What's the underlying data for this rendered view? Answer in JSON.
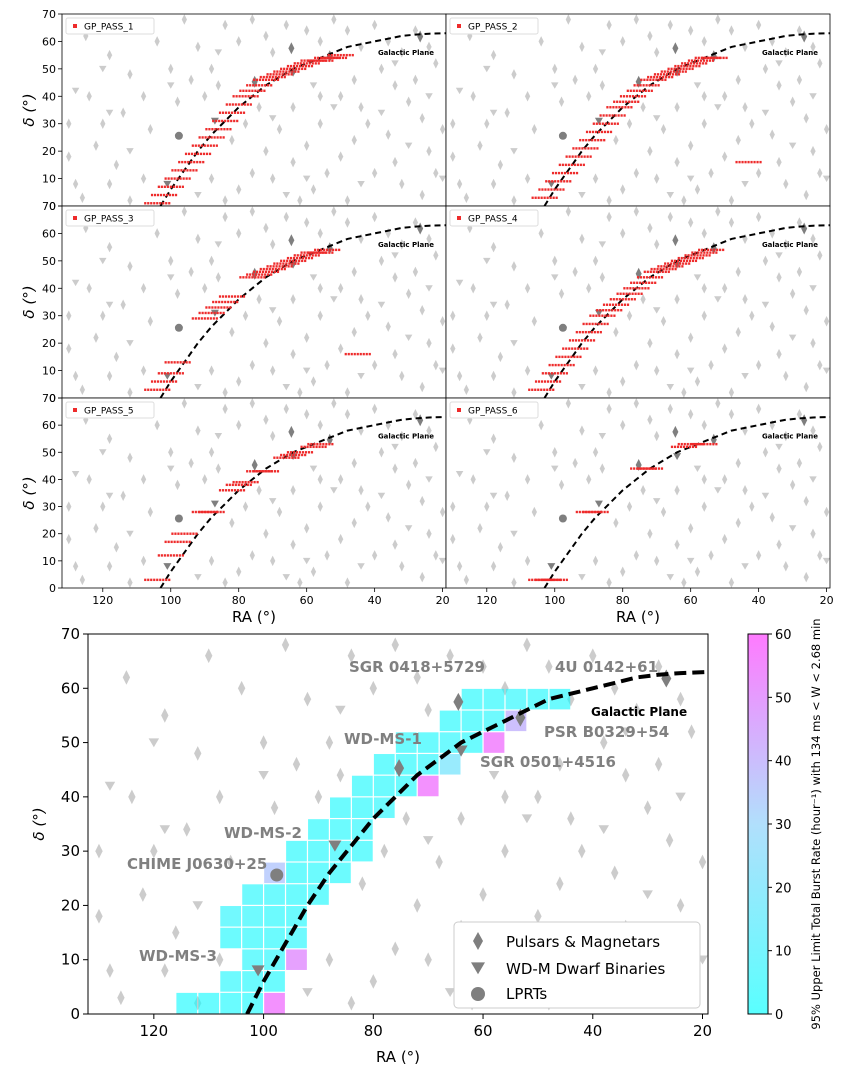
{
  "colors": {
    "survey_points": "#ee2b2b",
    "background_marker": "#cccccc",
    "source_marker": "#7f7f7f",
    "galactic_plane": "#000000",
    "colorbar_low": "#00ffff",
    "colorbar_mid": "#87ceeb",
    "colorbar_high": "#ff33ff",
    "label_gray": "#808080"
  },
  "chart_data": [
    {
      "type": "scatter",
      "panel": "top-left-1",
      "title": "",
      "legend": [
        "GP_PASS_1"
      ],
      "legend_position": "top-left",
      "xlabel": "",
      "ylabel": "δ (°)",
      "xlim": [
        132,
        19
      ],
      "ylim": [
        0,
        70
      ],
      "annotation": "Galactic Plane",
      "series": [
        {
          "name": "GP_PASS_1",
          "x": [
            104,
            102,
            100,
            98,
            96,
            94,
            92,
            90,
            88,
            86,
            84,
            82,
            80,
            78,
            76,
            74,
            72,
            70,
            68,
            66,
            64,
            62,
            60,
            58,
            56,
            54,
            52,
            50
          ],
          "y": [
            1,
            4,
            7,
            10,
            13,
            16,
            19,
            22,
            25,
            28,
            31,
            34,
            37,
            40,
            42,
            44,
            46,
            47,
            48,
            49,
            50,
            51,
            52,
            53,
            53,
            54,
            54,
            55
          ]
        }
      ]
    },
    {
      "type": "scatter",
      "panel": "top-right-2",
      "legend": [
        "GP_PASS_2"
      ],
      "legend_position": "top-left",
      "xlabel": "",
      "ylabel": "",
      "xlim": [
        132,
        19
      ],
      "ylim": [
        0,
        70
      ],
      "annotation": "Galactic Plane",
      "series": [
        {
          "name": "GP_PASS_2",
          "x": [
            103,
            101,
            99,
            97,
            95,
            93,
            91,
            89,
            87,
            85,
            83,
            81,
            79,
            77,
            75,
            73,
            71,
            69,
            67,
            65,
            63,
            61,
            59,
            57,
            55,
            53,
            43
          ],
          "y": [
            3,
            6,
            9,
            12,
            15,
            18,
            21,
            24,
            27,
            30,
            33,
            36,
            38,
            40,
            42,
            44,
            46,
            47,
            48,
            49,
            50,
            51,
            52,
            53,
            54,
            54,
            16
          ]
        }
      ]
    },
    {
      "type": "scatter",
      "panel": "middle-left-3",
      "legend": [
        "GP_PASS_3"
      ],
      "legend_position": "top-left",
      "xlabel": "",
      "ylabel": "δ (°)",
      "xlim": [
        132,
        19
      ],
      "ylim": [
        0,
        70
      ],
      "annotation": "Galactic Plane",
      "series": [
        {
          "name": "GP_PASS_3",
          "x": [
            104,
            102,
            100,
            98,
            90,
            88,
            86,
            84,
            82,
            76,
            74,
            72,
            70,
            68,
            66,
            64,
            62,
            60,
            58,
            56,
            54,
            45
          ],
          "y": [
            3,
            6,
            9,
            13,
            29,
            31,
            33,
            35,
            37,
            44,
            45,
            46,
            47,
            48,
            49,
            50,
            51,
            52,
            53,
            53,
            54,
            16
          ]
        }
      ]
    },
    {
      "type": "scatter",
      "panel": "middle-right-4",
      "legend": [
        "GP_PASS_4"
      ],
      "legend_position": "top-left",
      "xlabel": "",
      "ylabel": "",
      "xlim": [
        132,
        19
      ],
      "ylim": [
        0,
        70
      ],
      "annotation": "Galactic Plane",
      "series": [
        {
          "name": "GP_PASS_4",
          "x": [
            104,
            102,
            100,
            98,
            96,
            94,
            92,
            90,
            88,
            86,
            84,
            82,
            80,
            78,
            76,
            74,
            72,
            70,
            68,
            66,
            64,
            62,
            60,
            58,
            56,
            54
          ],
          "y": [
            3,
            6,
            9,
            12,
            15,
            18,
            21,
            24,
            27,
            30,
            32,
            34,
            36,
            38,
            40,
            42,
            44,
            46,
            47,
            48,
            49,
            50,
            51,
            52,
            53,
            54
          ]
        }
      ]
    },
    {
      "type": "scatter",
      "panel": "bottom-left-5",
      "legend": [
        "GP_PASS_5"
      ],
      "legend_position": "top-left",
      "xlabel": "RA (°)",
      "ylabel": "δ (°)",
      "xlim": [
        132,
        19
      ],
      "ylim": [
        0,
        70
      ],
      "annotation": "Galactic Plane",
      "series": [
        {
          "name": "GP_PASS_5",
          "x": [
            104,
            100,
            98,
            96,
            90,
            88,
            82,
            80,
            78,
            74,
            72,
            66,
            64,
            62,
            58,
            56
          ],
          "y": [
            3,
            12,
            17,
            20,
            28,
            28,
            36,
            38,
            39,
            43,
            43,
            48,
            49,
            50,
            52,
            53
          ]
        }
      ]
    },
    {
      "type": "scatter",
      "panel": "bottom-right-6",
      "legend": [
        "GP_PASS_6"
      ],
      "legend_position": "top-left",
      "xlabel": "RA (°)",
      "ylabel": "",
      "xlim": [
        132,
        19
      ],
      "ylim": [
        0,
        70
      ],
      "annotation": "Galactic Plane",
      "series": [
        {
          "name": "GP_PASS_6",
          "x": [
            104,
            102,
            100,
            90,
            88,
            74,
            72,
            62,
            60,
            56
          ],
          "y": [
            3,
            3,
            3,
            28,
            28,
            44,
            44,
            52,
            53,
            53
          ]
        }
      ]
    },
    {
      "type": "heatmap",
      "panel": "main",
      "title": "",
      "xlabel": "RA (°)",
      "ylabel": "δ (°)",
      "xlim": [
        132,
        19
      ],
      "ylim": [
        0,
        70
      ],
      "xticks": [
        120,
        100,
        80,
        60,
        40,
        20
      ],
      "yticks": [
        0,
        10,
        20,
        30,
        40,
        50,
        60,
        70
      ],
      "colorbar": {
        "label": "95% Upper Limit Total Burst Rate (hour⁻¹) with 134 ms < W < 2.68 min",
        "range": [
          0,
          60
        ],
        "ticks": [
          0,
          10,
          20,
          30,
          40,
          50,
          60
        ]
      },
      "annotation": "Galactic Plane",
      "cell_size_deg": 4,
      "cells": [
        {
          "ra": 114,
          "dec": 0,
          "v": 3
        },
        {
          "ra": 110,
          "dec": 0,
          "v": 3
        },
        {
          "ra": 106,
          "dec": 0,
          "v": 3
        },
        {
          "ra": 102,
          "dec": 0,
          "v": 3
        },
        {
          "ra": 98,
          "dec": 0,
          "v": 55
        },
        {
          "ra": 106,
          "dec": 4,
          "v": 5
        },
        {
          "ra": 102,
          "dec": 4,
          "v": 4
        },
        {
          "ra": 98,
          "dec": 4,
          "v": 4
        },
        {
          "ra": 102,
          "dec": 8,
          "v": 5
        },
        {
          "ra": 98,
          "dec": 8,
          "v": 5
        },
        {
          "ra": 94,
          "dec": 8,
          "v": 50
        },
        {
          "ra": 106,
          "dec": 12,
          "v": 4
        },
        {
          "ra": 102,
          "dec": 12,
          "v": 4
        },
        {
          "ra": 98,
          "dec": 12,
          "v": 4
        },
        {
          "ra": 94,
          "dec": 12,
          "v": 5
        },
        {
          "ra": 106,
          "dec": 16,
          "v": 6
        },
        {
          "ra": 102,
          "dec": 16,
          "v": 5
        },
        {
          "ra": 98,
          "dec": 16,
          "v": 4
        },
        {
          "ra": 94,
          "dec": 16,
          "v": 4
        },
        {
          "ra": 102,
          "dec": 20,
          "v": 5
        },
        {
          "ra": 98,
          "dec": 20,
          "v": 5
        },
        {
          "ra": 94,
          "dec": 20,
          "v": 4
        },
        {
          "ra": 90,
          "dec": 20,
          "v": 4
        },
        {
          "ra": 98,
          "dec": 24,
          "v": 35
        },
        {
          "ra": 94,
          "dec": 24,
          "v": 4
        },
        {
          "ra": 90,
          "dec": 24,
          "v": 4
        },
        {
          "ra": 86,
          "dec": 24,
          "v": 4
        },
        {
          "ra": 94,
          "dec": 28,
          "v": 4
        },
        {
          "ra": 90,
          "dec": 28,
          "v": 4
        },
        {
          "ra": 86,
          "dec": 28,
          "v": 5
        },
        {
          "ra": 82,
          "dec": 28,
          "v": 4
        },
        {
          "ra": 90,
          "dec": 32,
          "v": 4
        },
        {
          "ra": 86,
          "dec": 32,
          "v": 4
        },
        {
          "ra": 82,
          "dec": 32,
          "v": 5
        },
        {
          "ra": 86,
          "dec": 36,
          "v": 4
        },
        {
          "ra": 82,
          "dec": 36,
          "v": 4
        },
        {
          "ra": 78,
          "dec": 36,
          "v": 5
        },
        {
          "ra": 82,
          "dec": 40,
          "v": 4
        },
        {
          "ra": 78,
          "dec": 40,
          "v": 4
        },
        {
          "ra": 74,
          "dec": 40,
          "v": 4
        },
        {
          "ra": 70,
          "dec": 40,
          "v": 55
        },
        {
          "ra": 78,
          "dec": 44,
          "v": 4
        },
        {
          "ra": 74,
          "dec": 44,
          "v": 4
        },
        {
          "ra": 70,
          "dec": 44,
          "v": 5
        },
        {
          "ra": 66,
          "dec": 44,
          "v": 20
        },
        {
          "ra": 74,
          "dec": 48,
          "v": 4
        },
        {
          "ra": 70,
          "dec": 48,
          "v": 4
        },
        {
          "ra": 66,
          "dec": 48,
          "v": 5
        },
        {
          "ra": 62,
          "dec": 48,
          "v": 4
        },
        {
          "ra": 58,
          "dec": 48,
          "v": 55
        },
        {
          "ra": 66,
          "dec": 52,
          "v": 4
        },
        {
          "ra": 62,
          "dec": 52,
          "v": 4
        },
        {
          "ra": 58,
          "dec": 52,
          "v": 5
        },
        {
          "ra": 54,
          "dec": 52,
          "v": 40
        },
        {
          "ra": 62,
          "dec": 56,
          "v": 4
        },
        {
          "ra": 58,
          "dec": 56,
          "v": 4
        },
        {
          "ra": 54,
          "dec": 56,
          "v": 5
        },
        {
          "ra": 50,
          "dec": 56,
          "v": 4
        },
        {
          "ra": 46,
          "dec": 56,
          "v": 4
        }
      ],
      "labeled_sources": [
        {
          "name": "SGR 0418+5729",
          "ra": 64.5,
          "dec": 57.5,
          "kind": "pulsar"
        },
        {
          "name": "4U 0142+61",
          "ra": 26.6,
          "dec": 61.8,
          "kind": "pulsar"
        },
        {
          "name": "PSR B0329+54",
          "ra": 53.2,
          "dec": 54.6,
          "kind": "pulsar"
        },
        {
          "name": "SGR 0501+4516",
          "ra": 75.3,
          "dec": 45.3,
          "kind": "pulsar"
        },
        {
          "name": "WD-MS-1",
          "ra": 64.0,
          "dec": 48.5,
          "kind": "wd"
        },
        {
          "name": "WD-MS-2",
          "ra": 87.0,
          "dec": 31.0,
          "kind": "wd"
        },
        {
          "name": "CHIME J0630+25",
          "ra": 97.6,
          "dec": 25.6,
          "kind": "lprt"
        },
        {
          "name": "WD-MS-3",
          "ra": 101.0,
          "dec": 8.0,
          "kind": "wd"
        }
      ],
      "legend": [
        "Pulsars & Magnetars",
        "WD-M Dwarf Binaries",
        "LPRTs"
      ],
      "legend_position": "lower-right"
    }
  ],
  "galactic_plane": {
    "ra": [
      103,
      100,
      96,
      92,
      88,
      84,
      80,
      76,
      72,
      68,
      64,
      60,
      56,
      52,
      48,
      44,
      40,
      36,
      32,
      28,
      24,
      19
    ],
    "dec": [
      0,
      6,
      13,
      20,
      26,
      31,
      36,
      40,
      44,
      47,
      50,
      52,
      54,
      56,
      58,
      59,
      60,
      61,
      62,
      62.5,
      62.8,
      63
    ]
  },
  "background_sources": {
    "pulsars": [
      [
        125,
        62
      ],
      [
        118,
        55
      ],
      [
        112,
        48
      ],
      [
        108,
        40
      ],
      [
        130,
        30
      ],
      [
        122,
        22
      ],
      [
        116,
        15
      ],
      [
        128,
        8
      ],
      [
        126,
        3
      ],
      [
        110,
        66
      ],
      [
        104,
        60
      ],
      [
        96,
        68
      ],
      [
        92,
        58
      ],
      [
        88,
        50
      ],
      [
        84,
        66
      ],
      [
        80,
        60
      ],
      [
        76,
        68
      ],
      [
        72,
        62
      ],
      [
        70,
        56
      ],
      [
        66,
        66
      ],
      [
        60,
        64
      ],
      [
        56,
        60
      ],
      [
        52,
        68
      ],
      [
        48,
        64
      ],
      [
        44,
        58
      ],
      [
        40,
        66
      ],
      [
        36,
        60
      ],
      [
        32,
        56
      ],
      [
        28,
        64
      ],
      [
        24,
        58
      ],
      [
        22,
        52
      ],
      [
        38,
        50
      ],
      [
        34,
        44
      ],
      [
        30,
        38
      ],
      [
        26,
        32
      ],
      [
        42,
        30
      ],
      [
        46,
        24
      ],
      [
        50,
        18
      ],
      [
        54,
        12
      ],
      [
        58,
        6
      ],
      [
        62,
        2
      ],
      [
        40,
        12
      ],
      [
        32,
        8
      ],
      [
        24,
        20
      ],
      [
        28,
        46
      ],
      [
        50,
        40
      ],
      [
        46,
        46
      ],
      [
        56,
        30
      ],
      [
        64,
        36
      ],
      [
        68,
        28
      ],
      [
        72,
        20
      ],
      [
        76,
        12
      ],
      [
        80,
        6
      ],
      [
        84,
        2
      ],
      [
        88,
        10
      ],
      [
        70,
        10
      ],
      [
        64,
        16
      ],
      [
        60,
        22
      ],
      [
        56,
        40
      ],
      [
        44,
        36
      ],
      [
        36,
        26
      ],
      [
        22,
        12
      ],
      [
        120,
        30
      ],
      [
        114,
        34
      ],
      [
        106,
        28
      ],
      [
        124,
        40
      ],
      [
        100,
        50
      ],
      [
        94,
        46
      ],
      [
        108,
        10
      ],
      [
        112,
        2
      ],
      [
        98,
        38
      ],
      [
        90,
        40
      ],
      [
        86,
        44
      ],
      [
        118,
        8
      ],
      [
        130,
        18
      ],
      [
        34,
        16
      ],
      [
        20,
        28
      ],
      [
        26,
        4
      ],
      [
        48,
        2
      ],
      [
        82,
        24
      ],
      [
        78,
        30
      ],
      [
        74,
        36
      ]
    ],
    "wd": [
      [
        128,
        42
      ],
      [
        120,
        50
      ],
      [
        112,
        20
      ],
      [
        92,
        4
      ],
      [
        66,
        4
      ],
      [
        52,
        36
      ],
      [
        38,
        34
      ],
      [
        30,
        22
      ],
      [
        24,
        40
      ],
      [
        20,
        10
      ],
      [
        60,
        10
      ],
      [
        44,
        8
      ],
      [
        70,
        32
      ],
      [
        58,
        44
      ],
      [
        34,
        52
      ],
      [
        118,
        34
      ],
      [
        100,
        44
      ],
      [
        86,
        56
      ]
    ]
  },
  "main_source_labels": [
    {
      "text": "SGR 0418+5729"
    },
    {
      "text": "4U 0142+61"
    },
    {
      "text": "Galactic Plane"
    },
    {
      "text": "WD-MS-1"
    },
    {
      "text": "PSR B0329+54"
    },
    {
      "text": "SGR 0501+4516"
    },
    {
      "text": "WD-MS-2"
    },
    {
      "text": "CHIME J0630+25"
    },
    {
      "text": "WD-MS-3"
    }
  ]
}
